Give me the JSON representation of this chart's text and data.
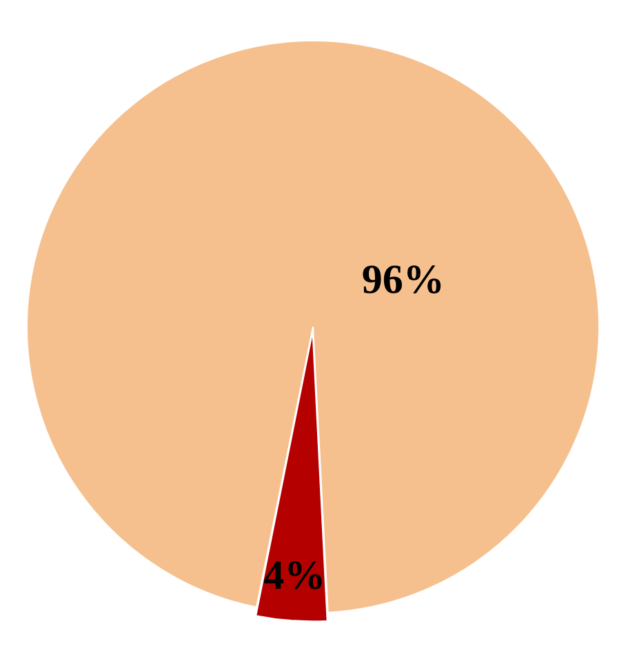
{
  "chart_data": {
    "type": "pie",
    "categories": [
      null,
      null
    ],
    "values": [
      96,
      4
    ],
    "colors": [
      "#f5c08e",
      "#b50000"
    ],
    "value_labels": [
      "96%",
      "4%"
    ],
    "legend": false
  }
}
